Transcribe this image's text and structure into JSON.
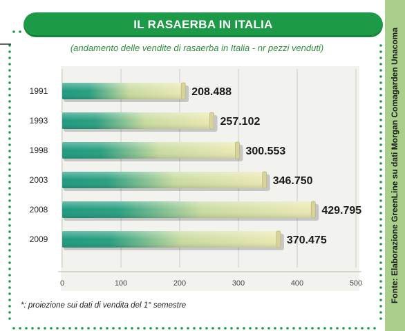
{
  "title": "IL RASAERBA IN ITALIA",
  "subtitle": "(andamento delle vendite di rasaerba in Italia - nr pezzi venduti)",
  "footnote": "*: proiezione sui dati di vendita del 1° semestre",
  "source": "Fonte: Elaborazione GreenLine su dati Morgan Comagarden Unacoma",
  "colors": {
    "title_bg": "#1c9a47",
    "subtitle": "#2e8b3c",
    "dotted_border": "#1c9a47",
    "source_band": "#a9cf8a",
    "bar_start": "#1f9a7e",
    "bar_end": "#ece9b4"
  },
  "chart_data": {
    "type": "bar",
    "orientation": "horizontal",
    "categories": [
      "1991",
      "1993",
      "1998",
      "2003",
      "2008",
      "2009"
    ],
    "values": [
      208.488,
      257.102,
      300.553,
      346.75,
      429.795,
      370.475
    ],
    "value_labels": [
      "208.488",
      "257.102",
      "300.553",
      "346.750",
      "429.795",
      "370.475"
    ],
    "xlim": [
      0,
      500
    ],
    "xticks": [
      0,
      100,
      200,
      300,
      400,
      500
    ],
    "title": "IL RASAERBA IN ITALIA",
    "xlabel": "",
    "ylabel": "",
    "grid": true,
    "legend": false
  }
}
